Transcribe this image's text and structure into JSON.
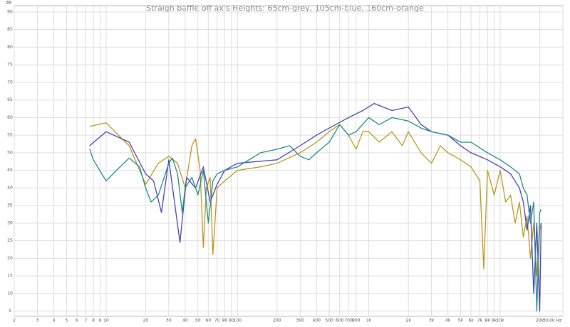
{
  "chart_data": {
    "type": "line",
    "title": "Straigh baffle off axis Heights: 65cm-grey, 105cm-blue, 160cm-orange",
    "y_label": "dB",
    "log_x": true,
    "grid": true,
    "xlim": [
      2,
      30000
    ],
    "ylim": [
      3.5,
      91.8
    ],
    "xticks": [
      2,
      3,
      4,
      5,
      6,
      7,
      8,
      9,
      10,
      20,
      30,
      40,
      50,
      60,
      70,
      80,
      90,
      100,
      200,
      300,
      400,
      500,
      600,
      700,
      800,
      {
        "value": 1000,
        "label": "1k"
      },
      {
        "value": 2000,
        "label": "2k"
      },
      {
        "value": 3000,
        "label": "3k"
      },
      {
        "value": 4000,
        "label": "4k"
      },
      {
        "value": 5000,
        "label": "5k"
      },
      {
        "value": 6000,
        "label": "6k"
      },
      {
        "value": 7000,
        "label": "7k"
      },
      {
        "value": 8000,
        "label": "8k"
      },
      {
        "value": 9000,
        "label": "9k"
      },
      {
        "value": 10000,
        "label": "10k"
      },
      {
        "value": 20000,
        "label": "20k"
      },
      {
        "value": 30000,
        "label": "30,0k Hz"
      }
    ],
    "yticks": [
      5,
      10,
      15,
      20,
      25,
      30,
      35,
      40,
      45,
      50,
      55,
      60,
      65,
      70,
      75,
      80,
      85,
      90
    ],
    "series": [
      {
        "color": "#b8981c",
        "x": [
          7.5,
          10,
          15,
          20,
          25,
          30,
          35,
          40,
          45,
          48,
          52,
          55,
          58,
          62,
          65,
          70,
          80,
          100,
          150,
          200,
          300,
          400,
          500,
          600,
          700,
          800,
          900,
          1000,
          1200,
          1500,
          1800,
          2000,
          2500,
          3000,
          3500,
          4000,
          5000,
          6000,
          7000,
          7500,
          8000,
          9000,
          10000,
          11000,
          12000,
          13000,
          14000,
          15000,
          16000,
          17000,
          18000,
          19000,
          20000,
          20500
        ],
        "values": [
          57.5,
          58.5,
          52,
          41,
          47,
          49,
          47,
          40,
          52,
          54,
          45,
          23,
          40,
          43,
          21,
          40,
          42,
          45,
          46,
          47,
          50,
          53,
          56,
          58,
          55,
          51,
          56,
          56,
          53,
          56,
          52,
          56,
          50,
          47,
          52,
          50,
          48,
          46,
          42,
          17,
          45,
          38,
          45,
          36,
          38,
          30,
          36,
          26,
          32,
          20,
          30,
          15,
          28,
          30
        ]
      },
      {
        "color": "#4a3fb0",
        "x": [
          7.5,
          10,
          15,
          20,
          23,
          26.4,
          30,
          36.5,
          41,
          48,
          55,
          62,
          70,
          80,
          100,
          200,
          300,
          400,
          500,
          700,
          900,
          1100,
          1500,
          2000,
          2500,
          3000,
          4000,
          5000,
          6000,
          8000,
          10000,
          12000,
          14000,
          15000,
          16000,
          17000,
          18000,
          19000,
          20000,
          20500
        ],
        "values": [
          52,
          56,
          53,
          44,
          42,
          33,
          48,
          24.5,
          43,
          40,
          46,
          36,
          41,
          45,
          47,
          48,
          52,
          55,
          57,
          60,
          62,
          64,
          62,
          63,
          58,
          56,
          55,
          52,
          50,
          48,
          46,
          44,
          40,
          36,
          28,
          35,
          10,
          30,
          5,
          30
        ]
      },
      {
        "color": "#1e8a88",
        "x": [
          7.5,
          8,
          10,
          12,
          15,
          18,
          20,
          22,
          25,
          30,
          32,
          35,
          38,
          40,
          45,
          50,
          55,
          60,
          65,
          70,
          80,
          100,
          150,
          200,
          250,
          300,
          350,
          400,
          500,
          600,
          700,
          800,
          1000,
          1200,
          1500,
          2000,
          2500,
          3000,
          4000,
          5000,
          6000,
          8000,
          10000,
          12000,
          14000,
          15000,
          16000,
          17000,
          18000,
          19000,
          20000,
          20500
        ],
        "values": [
          51,
          48,
          42,
          45,
          48.5,
          46,
          40,
          36,
          38,
          47,
          48.5,
          44,
          33,
          40,
          43,
          38,
          45,
          30,
          42,
          44,
          45,
          46,
          50,
          51,
          52,
          49,
          48,
          50,
          53,
          58,
          55,
          56,
          60,
          58,
          60,
          59,
          57,
          56,
          55,
          53,
          53,
          50,
          48,
          46,
          44,
          40,
          38,
          30,
          36,
          5,
          33,
          34
        ]
      }
    ]
  }
}
